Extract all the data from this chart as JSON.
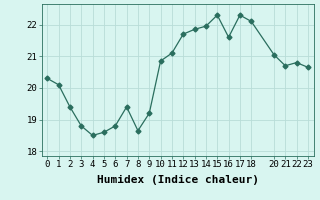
{
  "x": [
    0,
    1,
    2,
    3,
    4,
    5,
    6,
    7,
    8,
    9,
    10,
    11,
    12,
    13,
    14,
    15,
    16,
    17,
    18,
    20,
    21,
    22,
    23
  ],
  "y": [
    20.3,
    20.1,
    19.4,
    18.8,
    18.5,
    18.6,
    18.8,
    19.4,
    18.65,
    19.2,
    20.85,
    21.1,
    21.7,
    21.85,
    21.95,
    22.3,
    21.6,
    22.3,
    22.1,
    21.05,
    20.7,
    20.8,
    20.65
  ],
  "line_color": "#2a6e5e",
  "marker": "D",
  "marker_size": 2.5,
  "bg_color": "#d8f5f0",
  "grid_color": "#b8ddd8",
  "xlabel": "Humidex (Indice chaleur)",
  "xlabel_fontsize": 8,
  "xlim": [
    -0.5,
    23.5
  ],
  "ylim": [
    17.85,
    22.65
  ],
  "yticks": [
    18,
    19,
    20,
    21,
    22
  ],
  "xticks": [
    0,
    1,
    2,
    3,
    4,
    5,
    6,
    7,
    8,
    9,
    10,
    11,
    12,
    13,
    14,
    15,
    16,
    17,
    18,
    20,
    21,
    22,
    23
  ],
  "tick_fontsize": 6.5
}
